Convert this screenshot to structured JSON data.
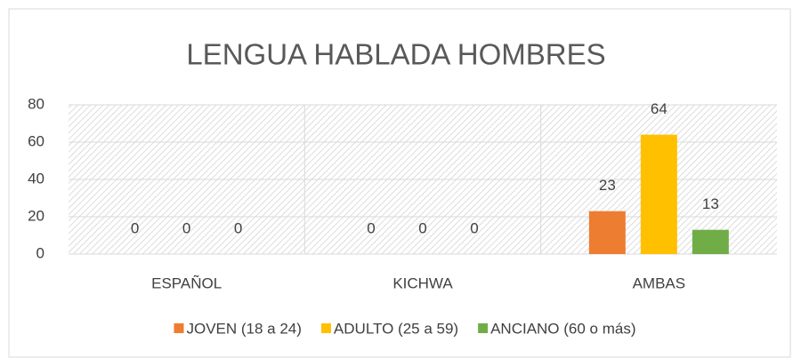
{
  "chart_data": {
    "type": "bar",
    "title": "LENGUA HABLADA HOMBRES",
    "categories": [
      "ESPAÑOL",
      "KICHWA",
      "AMBAS"
    ],
    "series": [
      {
        "name": "JOVEN (18 a 24)",
        "color": "#ED7D31",
        "values": [
          0,
          0,
          23
        ]
      },
      {
        "name": "ADULTO (25 a 59)",
        "color": "#FFC000",
        "values": [
          0,
          0,
          64
        ]
      },
      {
        "name": "ANCIANO (60 o más)",
        "color": "#70AD47",
        "values": [
          0,
          0,
          13
        ]
      }
    ],
    "ylim": [
      0,
      80
    ],
    "yticks": [
      0,
      20,
      40,
      60,
      80
    ],
    "grid": true,
    "legend": "bottom"
  }
}
